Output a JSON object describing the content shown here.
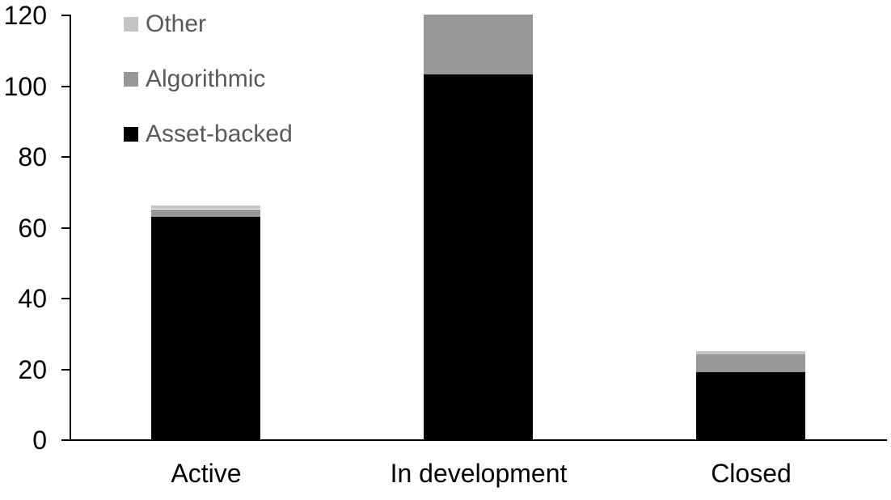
{
  "chart_data": {
    "type": "bar",
    "stacked": true,
    "title": "",
    "xlabel": "",
    "ylabel": "",
    "categories": [
      "Active",
      "In development",
      "Closed"
    ],
    "series": [
      {
        "name": "Asset-backed",
        "color": "#000000",
        "values": [
          63,
          103,
          19
        ]
      },
      {
        "name": "Algorithmic",
        "color": "#979797",
        "values": [
          2,
          17,
          5
        ]
      },
      {
        "name": "Other",
        "color": "#c4c4c4",
        "values": [
          1,
          0,
          1
        ]
      }
    ],
    "totals": [
      66,
      120,
      25
    ],
    "ylim": [
      0,
      120
    ],
    "yticks": [
      0,
      20,
      40,
      60,
      80,
      100,
      120
    ],
    "grid": false,
    "axis_color": "#000000",
    "legend": {
      "position": "top-left-inside",
      "order": [
        "Other",
        "Algorithmic",
        "Asset-backed"
      ],
      "text_color": "#595959"
    }
  }
}
